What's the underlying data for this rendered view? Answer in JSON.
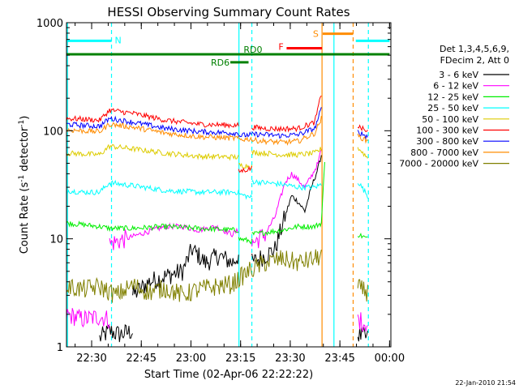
{
  "chart_data": {
    "type": "line",
    "title": "HESSI Observing Summary Count Rates",
    "xlabel": "Start Time (02-Apr-06 22:22:22)",
    "ylabel_main": "Count Rate (s",
    "ylabel_sup1": "-1",
    "ylabel_mid": " detector",
    "ylabel_sup2": "-1",
    "ylabel_end": ")",
    "timestamp": "22-Jan-2010 21:54",
    "y_scale": "log",
    "ylim": [
      1,
      1000
    ],
    "xlim_minutes": [
      0,
      98
    ],
    "y_ticks": [
      {
        "value": 1,
        "label": "1"
      },
      {
        "value": 10,
        "label": "10"
      },
      {
        "value": 100,
        "label": "100"
      },
      {
        "value": 1000,
        "label": "1000"
      }
    ],
    "x_ticks": [
      {
        "t": 7.6,
        "label": "22:30"
      },
      {
        "t": 22.6,
        "label": "22:45"
      },
      {
        "t": 37.6,
        "label": "23:00"
      },
      {
        "t": 52.6,
        "label": "23:15"
      },
      {
        "t": 67.6,
        "label": "23:30"
      },
      {
        "t": 82.6,
        "label": "23:45"
      },
      {
        "t": 97.6,
        "label": "00:00"
      }
    ],
    "legend_title": [
      "Det 1,3,4,5,6,9,",
      "FDecim 2, Att 0"
    ],
    "legend_position": "right",
    "series": [
      {
        "name": "3 - 6 keV",
        "color": "#000000",
        "segments": [
          [
            [
              10,
              1.2
            ],
            [
              13,
              1.4
            ],
            [
              16,
              1.3
            ],
            [
              20,
              1.4
            ]
          ],
          [
            [
              20,
              3
            ],
            [
              25,
              4
            ],
            [
              30,
              4.5
            ],
            [
              35,
              5
            ],
            [
              38,
              8
            ],
            [
              42,
              6
            ],
            [
              46,
              7
            ],
            [
              50,
              6
            ],
            [
              52,
              7
            ]
          ],
          [
            [
              56,
              6
            ],
            [
              60,
              7
            ],
            [
              63,
              8
            ],
            [
              66,
              16
            ],
            [
              68,
              25
            ],
            [
              70,
              22
            ],
            [
              72,
              18
            ],
            [
              74,
              30
            ],
            [
              76,
              45
            ],
            [
              77,
              60
            ]
          ],
          [
            [
              88,
              1.3
            ],
            [
              91,
              1.2
            ]
          ]
        ]
      },
      {
        "name": "6 - 12 keV",
        "color": "#ff00ff",
        "segments": [
          [
            [
              0,
              2
            ],
            [
              5,
              1.8
            ],
            [
              10,
              1.9
            ],
            [
              13,
              1.8
            ]
          ],
          [
            [
              13,
              9
            ],
            [
              18,
              10
            ],
            [
              22,
              11
            ],
            [
              26,
              12
            ],
            [
              30,
              13
            ],
            [
              35,
              13
            ],
            [
              40,
              12
            ],
            [
              45,
              13
            ],
            [
              50,
              11
            ],
            [
              52,
              12
            ]
          ],
          [
            [
              56,
              9
            ],
            [
              60,
              11
            ],
            [
              63,
              16
            ],
            [
              66,
              33
            ],
            [
              68,
              40
            ],
            [
              70,
              35
            ],
            [
              72,
              30
            ],
            [
              74,
              38
            ],
            [
              76,
              50
            ],
            [
              77,
              68
            ]
          ],
          [
            [
              88,
              1.8
            ],
            [
              91,
              1.6
            ]
          ]
        ]
      },
      {
        "name": "12 - 25 keV",
        "color": "#00ee00",
        "segments": [
          [
            [
              0,
              14
            ],
            [
              5,
              13.5
            ],
            [
              10,
              13
            ],
            [
              13,
              12.5
            ],
            [
              20,
              12.5
            ],
            [
              30,
              13
            ],
            [
              40,
              12.5
            ],
            [
              52,
              12
            ]
          ],
          [
            [
              52,
              10
            ],
            [
              56,
              9.5
            ]
          ],
          [
            [
              56,
              11
            ],
            [
              65,
              12
            ],
            [
              70,
              13
            ],
            [
              75,
              13
            ],
            [
              77,
              14
            ],
            [
              78,
              50
            ]
          ],
          [
            [
              88,
              11
            ],
            [
              91,
              10
            ]
          ]
        ]
      },
      {
        "name": "25 - 50 keV",
        "color": "#00ffff",
        "segments": [
          [
            [
              0,
              28
            ],
            [
              5,
              27
            ],
            [
              10,
              27
            ],
            [
              13,
              33
            ],
            [
              20,
              31
            ],
            [
              30,
              28
            ],
            [
              40,
              27
            ],
            [
              52,
              27
            ]
          ],
          [
            [
              52,
              26
            ],
            [
              56,
              24
            ]
          ],
          [
            [
              56,
              34
            ],
            [
              60,
              33
            ],
            [
              65,
              32
            ],
            [
              70,
              30
            ],
            [
              75,
              30
            ],
            [
              77,
              32
            ]
          ],
          [
            [
              88,
              34
            ],
            [
              91,
              25
            ]
          ]
        ]
      },
      {
        "name": "50 - 100 keV",
        "color": "#ddcc00",
        "segments": [
          [
            [
              0,
              62
            ],
            [
              5,
              61
            ],
            [
              10,
              60
            ],
            [
              13,
              72
            ],
            [
              20,
              68
            ],
            [
              30,
              62
            ],
            [
              40,
              58
            ],
            [
              52,
              57
            ]
          ],
          [
            [
              52,
              48
            ],
            [
              56,
              47
            ]
          ],
          [
            [
              56,
              63
            ],
            [
              60,
              62
            ],
            [
              65,
              60
            ],
            [
              70,
              60
            ],
            [
              75,
              62
            ],
            [
              77,
              68
            ]
          ],
          [
            [
              88,
              70
            ],
            [
              91,
              56
            ]
          ]
        ]
      },
      {
        "name": "100 - 300 keV",
        "color": "#ff0000",
        "segments": [
          [
            [
              0,
              130
            ],
            [
              5,
              128
            ],
            [
              10,
              125
            ],
            [
              13,
              155
            ],
            [
              20,
              145
            ],
            [
              30,
              125
            ],
            [
              40,
              115
            ],
            [
              52,
              112
            ]
          ],
          [
            [
              52,
              42
            ],
            [
              56,
              45
            ]
          ],
          [
            [
              56,
              108
            ],
            [
              60,
              105
            ],
            [
              65,
              104
            ],
            [
              70,
              105
            ],
            [
              75,
              120
            ],
            [
              77,
              220
            ]
          ],
          [
            [
              88,
              110
            ],
            [
              91,
              98
            ]
          ]
        ]
      },
      {
        "name": "300 - 800 keV",
        "color": "#0000ff",
        "segments": [
          [
            [
              0,
              115
            ],
            [
              5,
              112
            ],
            [
              10,
              110
            ],
            [
              13,
              130
            ],
            [
              20,
              120
            ],
            [
              30,
              105
            ],
            [
              40,
              98
            ],
            [
              52,
              95
            ]
          ],
          [
            [
              52,
              90
            ],
            [
              56,
              92
            ]
          ],
          [
            [
              56,
              93
            ],
            [
              60,
              92
            ],
            [
              65,
              90
            ],
            [
              70,
              92
            ],
            [
              75,
              105
            ],
            [
              77,
              160
            ]
          ],
          [
            [
              88,
              98
            ],
            [
              91,
              88
            ]
          ]
        ]
      },
      {
        "name": "800 - 7000 keV",
        "color": "#ff8c00",
        "segments": [
          [
            [
              0,
              102
            ],
            [
              5,
              100
            ],
            [
              10,
              98
            ],
            [
              13,
              115
            ],
            [
              20,
              108
            ],
            [
              30,
              95
            ],
            [
              40,
              88
            ],
            [
              52,
              85
            ]
          ],
          [
            [
              52,
              83
            ],
            [
              56,
              84
            ]
          ],
          [
            [
              56,
              82
            ],
            [
              60,
              80
            ],
            [
              65,
              78
            ],
            [
              70,
              80
            ],
            [
              75,
              95
            ],
            [
              77,
              130
            ]
          ],
          [
            [
              88,
              90
            ],
            [
              91,
              80
            ]
          ]
        ]
      },
      {
        "name": "7000 - 20000 keV",
        "color": "#808000",
        "segments": [
          [
            [
              0,
              3.6
            ],
            [
              5,
              3.4
            ],
            [
              10,
              3.6
            ],
            [
              15,
              3.0
            ],
            [
              20,
              3.7
            ],
            [
              25,
              3.2
            ],
            [
              30,
              3.5
            ],
            [
              35,
              3.0
            ],
            [
              40,
              3.4
            ],
            [
              45,
              3.6
            ],
            [
              50,
              3.8
            ],
            [
              55,
              5
            ],
            [
              60,
              6
            ],
            [
              65,
              6.5
            ],
            [
              70,
              6
            ],
            [
              75,
              6.5
            ],
            [
              77,
              7
            ]
          ],
          [
            [
              88,
              3.5
            ],
            [
              91,
              3.2
            ]
          ]
        ]
      }
    ],
    "flag_bars": [
      {
        "label": "N",
        "color": "#00ffff",
        "t_start": 0,
        "t_end": 13.6,
        "level": 680
      },
      {
        "label": "",
        "color": "#00ffff",
        "t_start": 87.4,
        "t_end": 97.6,
        "level": 680
      },
      {
        "label": "S",
        "color": "#ff8c00",
        "t_start": 77.4,
        "t_end": 86.6,
        "level": 790
      },
      {
        "label": "F",
        "color": "#ff0000",
        "t_start": 66.5,
        "t_end": 77.2,
        "level": 580
      },
      {
        "label": "RD0",
        "color": "#008000",
        "t_start": 0,
        "t_end": 97.6,
        "level": 510
      },
      {
        "label": "RD6",
        "color": "#008000",
        "t_start": 49.5,
        "t_end": 55,
        "level": 430
      }
    ],
    "vertical_markers": [
      {
        "t": 0.3,
        "color": "#00ffff",
        "style": "solid"
      },
      {
        "t": 13.6,
        "color": "#00ffff",
        "style": "dashed"
      },
      {
        "t": 52.1,
        "color": "#00ffff",
        "style": "solid"
      },
      {
        "t": 56.0,
        "color": "#00ffff",
        "style": "dashed"
      },
      {
        "t": 77.2,
        "color": "#ff8c00",
        "style": "solid"
      },
      {
        "t": 80.8,
        "color": "#00ffff",
        "style": "solid"
      },
      {
        "t": 86.6,
        "color": "#ff8c00",
        "style": "dashed"
      },
      {
        "t": 91.2,
        "color": "#00ffff",
        "style": "dashed"
      }
    ]
  }
}
